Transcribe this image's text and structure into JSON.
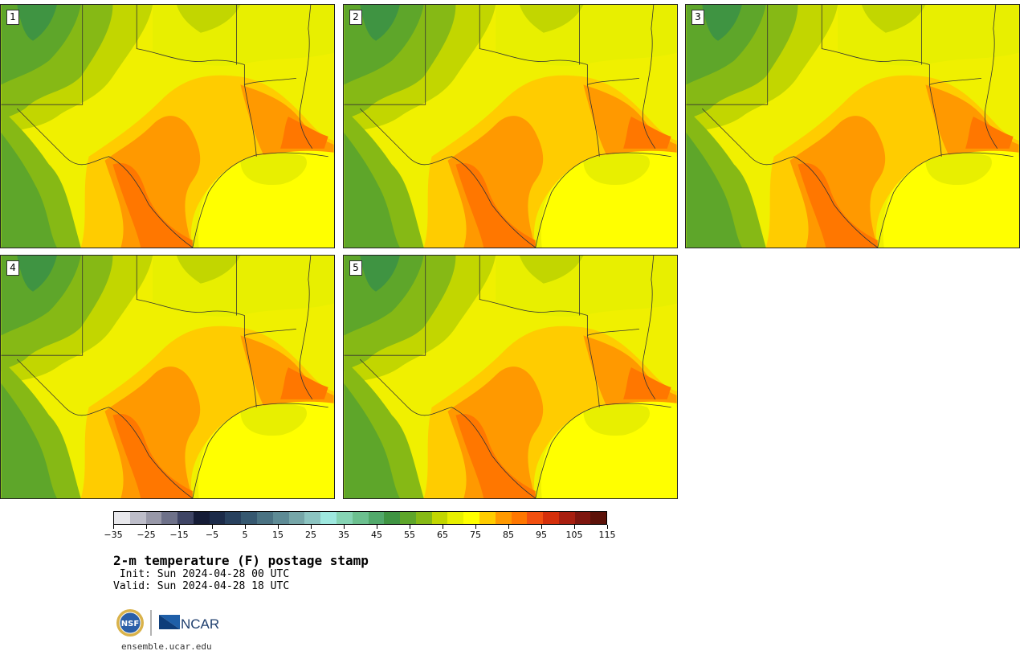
{
  "panels": [
    {
      "label": "1"
    },
    {
      "label": "2"
    },
    {
      "label": "3"
    },
    {
      "label": "4"
    },
    {
      "label": "5"
    }
  ],
  "colorbar": {
    "colors": [
      "#e8e8ec",
      "#bdbdc9",
      "#9898a8",
      "#6e7189",
      "#3f4565",
      "#151c36",
      "#1c2b49",
      "#28415e",
      "#365870",
      "#4a7282",
      "#5e8b95",
      "#76a6a8",
      "#8cc4c1",
      "#9ee8df",
      "#86d4b4",
      "#6cc08f",
      "#52a96b",
      "#3f9442",
      "#5ea62a",
      "#86b915",
      "#c2d600",
      "#e8ef00",
      "#ffff00",
      "#ffcc00",
      "#ff9900",
      "#ff7700",
      "#f25010",
      "#d52f0b",
      "#a81f10",
      "#7e160f",
      "#5c1209"
    ],
    "tick_labels": [
      "−35",
      "−25",
      "−15",
      "−5",
      "5",
      "15",
      "25",
      "35",
      "45",
      "55",
      "65",
      "75",
      "85",
      "95",
      "105",
      "115"
    ]
  },
  "title": "2-m temperature (F) postage stamp",
  "init_line": " Init: Sun 2024-04-28 00 UTC",
  "valid_line": "Valid: Sun 2024-04-28 18 UTC",
  "logo": {
    "left_text": "NSF",
    "right_text": "NCAR"
  },
  "website": "ensemble.ucar.edu"
}
